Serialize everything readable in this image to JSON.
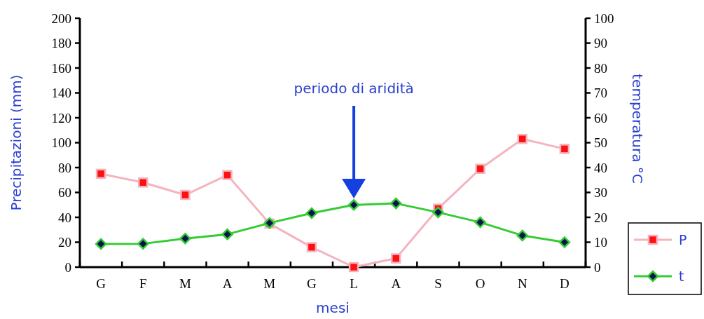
{
  "chart_data": {
    "type": "line",
    "xlabel": "mesi",
    "ylabel": "Precipitazioni  (mm)",
    "y2label": "temperatura °C",
    "categories": [
      "G",
      "F",
      "M",
      "A",
      "M",
      "G",
      "L",
      "A",
      "S",
      "O",
      "N",
      "D"
    ],
    "series": [
      {
        "name": "P",
        "color": "#f4b4bf",
        "marker": "square",
        "values": [
          75,
          68,
          58,
          74,
          35,
          16,
          0,
          7,
          47,
          79,
          103,
          95
        ]
      },
      {
        "name": "t",
        "color": "#33cc33",
        "marker": "diamond",
        "axis": "y2",
        "values": [
          9.3,
          9.4,
          11.5,
          13.2,
          17.7,
          21.7,
          25,
          25.6,
          22,
          18,
          12.7,
          10
        ]
      }
    ],
    "ylim": [
      0,
      200
    ],
    "yticks": [
      0,
      20,
      40,
      60,
      80,
      100,
      120,
      140,
      160,
      180,
      200
    ],
    "y2lim": [
      0,
      100
    ],
    "y2ticks": [
      0,
      10,
      20,
      30,
      40,
      50,
      60,
      70,
      80,
      90,
      100
    ],
    "annotations": [
      "periodo di aridità"
    ],
    "grid": false,
    "legend": "bottom right"
  }
}
